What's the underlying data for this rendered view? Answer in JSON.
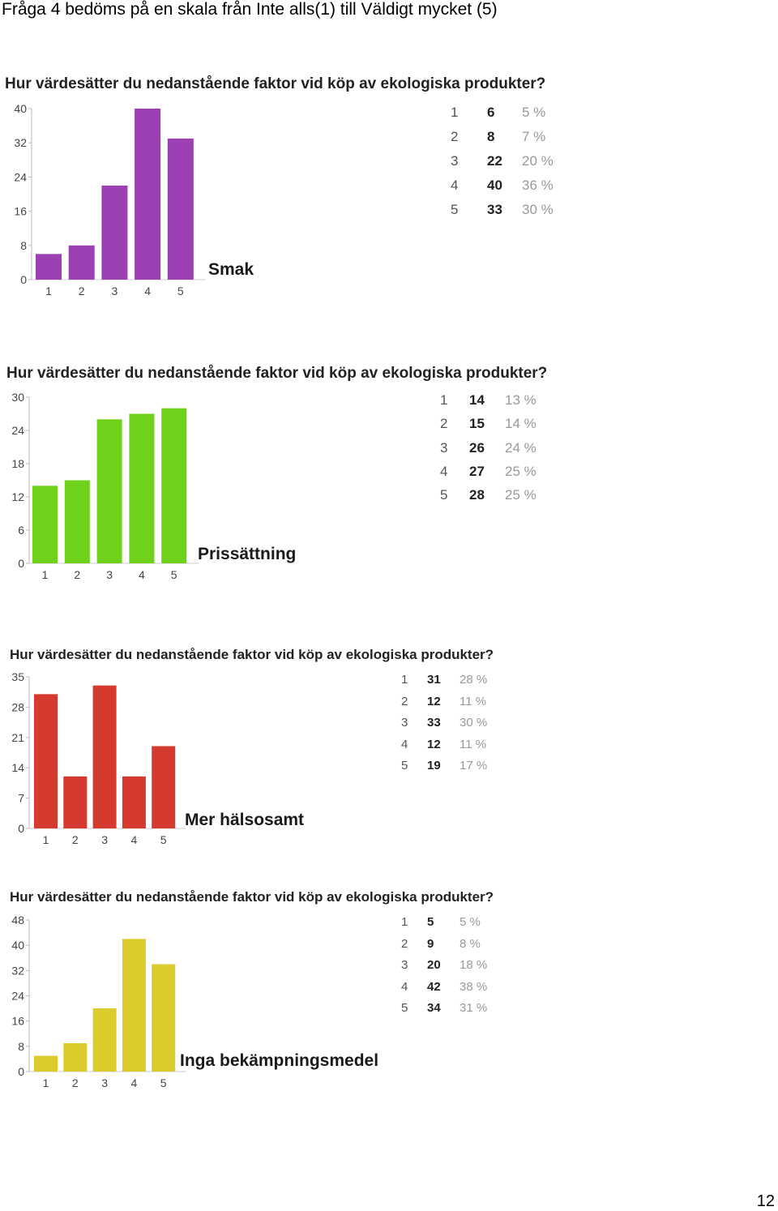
{
  "page_heading": "Fråga 4 bedöms på en skala från Inte alls(1) till Väldigt mycket (5)",
  "page_number": "12",
  "chart_data": [
    {
      "type": "bar",
      "title": "Hur värdesätter du nedanstående faktor vid köp av ekologiska produkter?",
      "factor": "Smak",
      "categories": [
        "1",
        "2",
        "3",
        "4",
        "5"
      ],
      "values": [
        6,
        8,
        22,
        40,
        33
      ],
      "percentages": [
        "5 %",
        "7 %",
        "20 %",
        "36 %",
        "30 %"
      ],
      "yticks": [
        0,
        8,
        16,
        24,
        32,
        40
      ],
      "ylim": [
        0,
        40
      ],
      "color": "#9b3fb3"
    },
    {
      "type": "bar",
      "title": "Hur värdesätter du nedanstående faktor vid köp av ekologiska produkter?",
      "factor": "Prissättning",
      "categories": [
        "1",
        "2",
        "3",
        "4",
        "5"
      ],
      "values": [
        14,
        15,
        26,
        27,
        28
      ],
      "percentages": [
        "13 %",
        "14 %",
        "24 %",
        "25 %",
        "25 %"
      ],
      "yticks": [
        0,
        6,
        12,
        18,
        24,
        30
      ],
      "ylim": [
        0,
        30
      ],
      "color": "#6ed11a"
    },
    {
      "type": "bar",
      "title": "Hur värdesätter du nedanstående faktor vid köp av ekologiska produkter?",
      "factor": "Mer hälsosamt",
      "categories": [
        "1",
        "2",
        "3",
        "4",
        "5"
      ],
      "values": [
        31,
        12,
        33,
        12,
        19
      ],
      "percentages": [
        "28 %",
        "11 %",
        "30 %",
        "11 %",
        "17 %"
      ],
      "yticks": [
        0,
        7,
        14,
        21,
        28,
        35
      ],
      "ylim": [
        0,
        35
      ],
      "color": "#d43a2f"
    },
    {
      "type": "bar",
      "title": "Hur värdesätter du nedanstående faktor vid köp av ekologiska produkter?",
      "factor": "Inga bekämpningsmedel",
      "categories": [
        "1",
        "2",
        "3",
        "4",
        "5"
      ],
      "values": [
        5,
        9,
        20,
        42,
        34
      ],
      "percentages": [
        "5 %",
        "8 %",
        "18 %",
        "38 %",
        "31 %"
      ],
      "yticks": [
        0,
        8,
        16,
        24,
        32,
        40,
        48
      ],
      "ylim": [
        0,
        48
      ],
      "color": "#dccb2c"
    }
  ]
}
